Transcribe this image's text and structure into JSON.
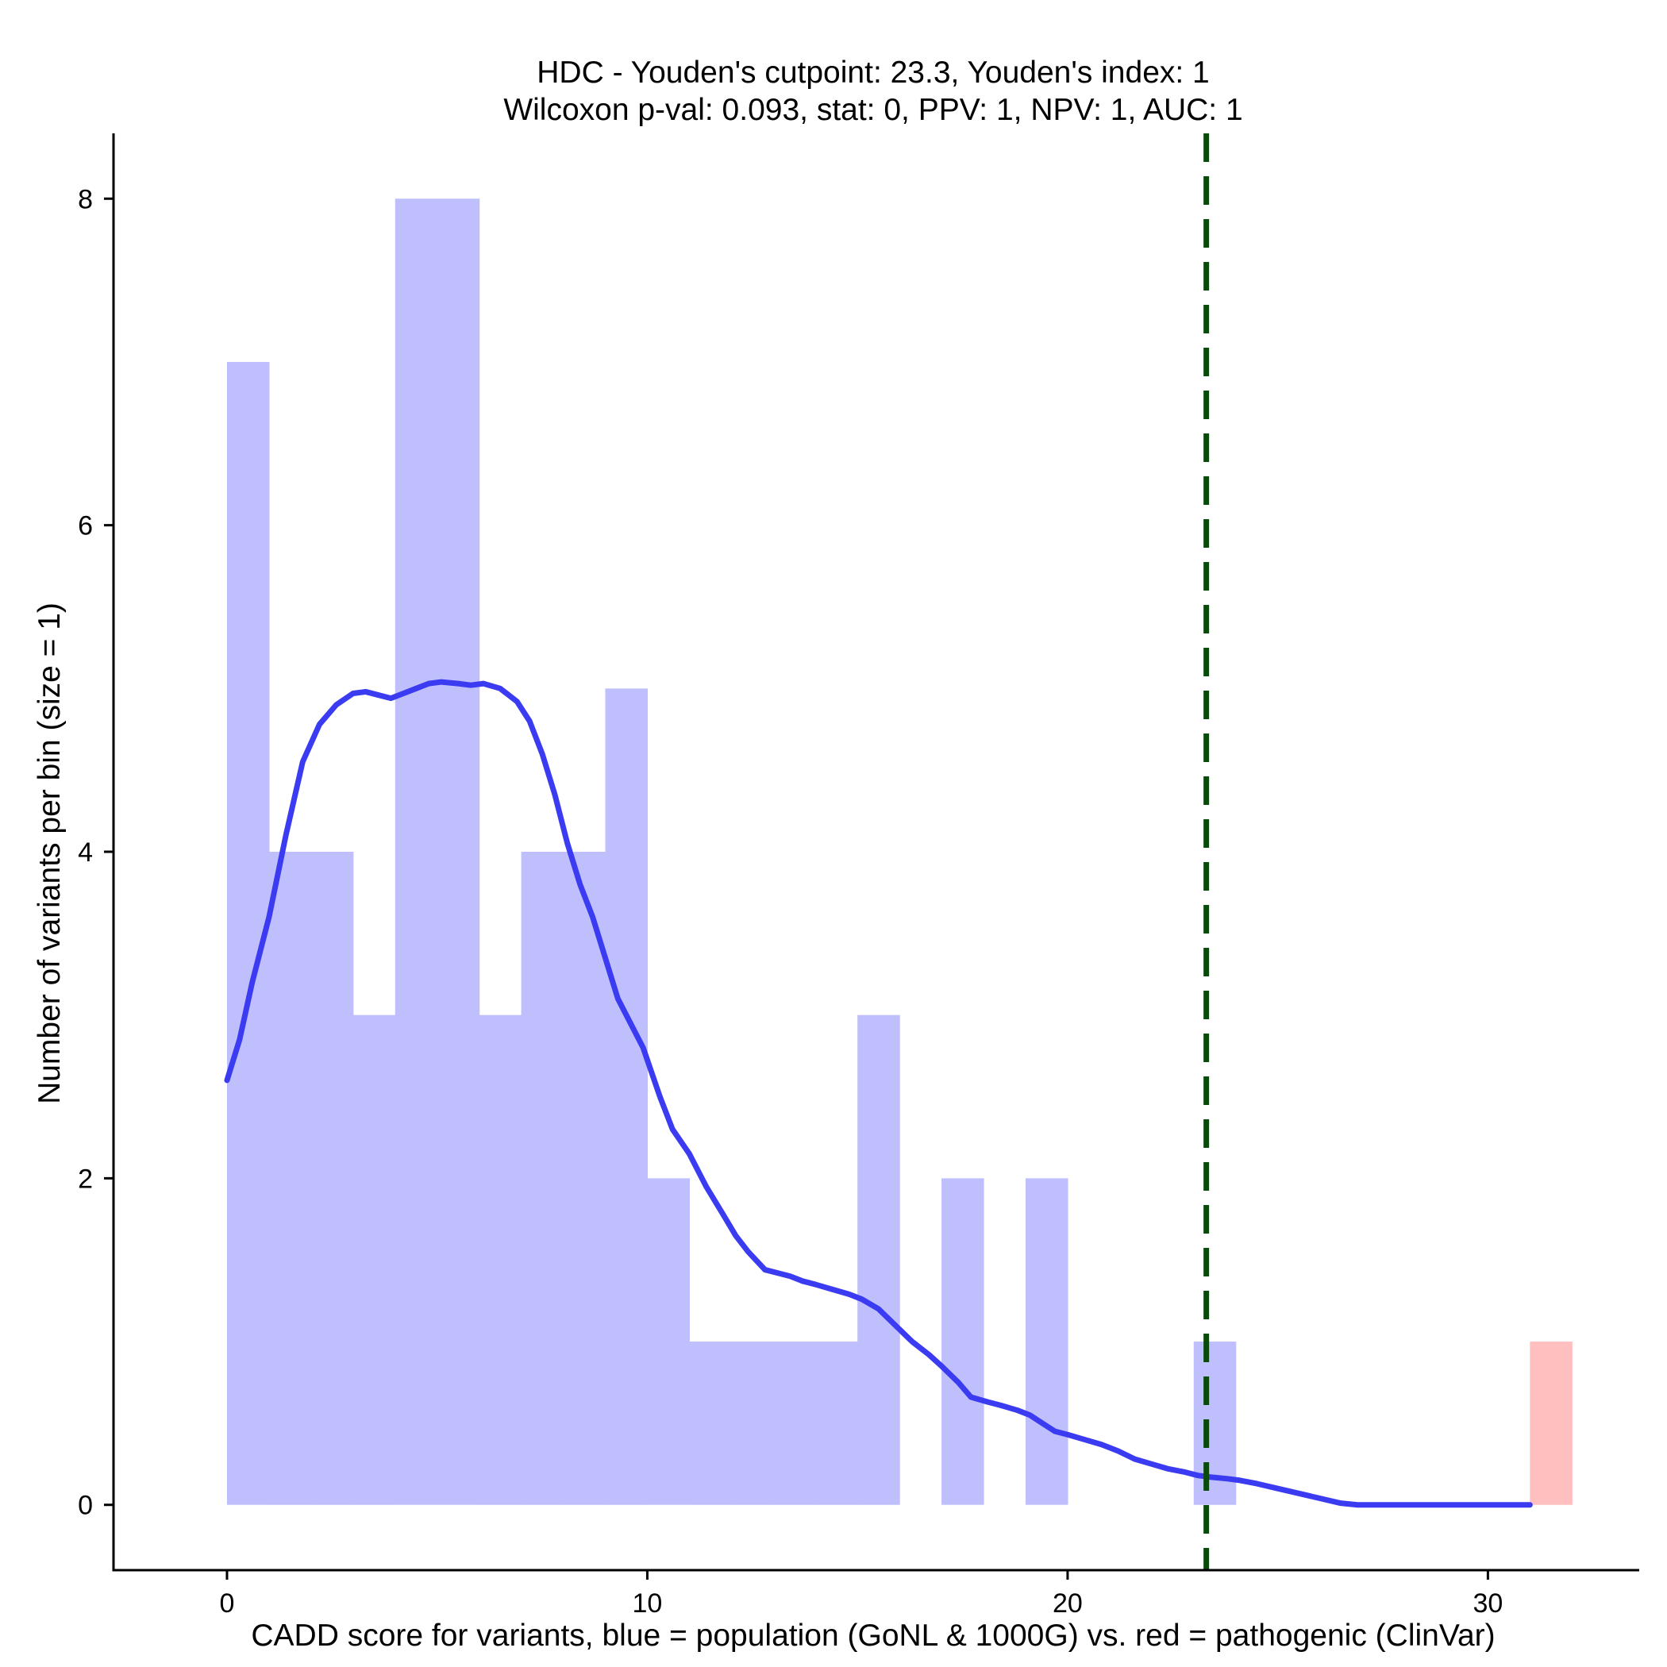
{
  "chart_data": {
    "type": "bar",
    "title": "HDC - Youden's cutpoint: 23.3, Youden's index: 1",
    "subtitle": "Wilcoxon p-val: 0.093, stat: 0, PPV: 1, NPV: 1, AUC: 1",
    "xlabel": "CADD score for variants, blue = population (GoNL & 1000G) vs. red = pathogenic (ClinVar)",
    "ylabel": "Number of variants per bin (size = 1)",
    "xlim": [
      -2.7,
      33.6
    ],
    "ylim": [
      -0.4,
      8.4
    ],
    "x_ticks": [
      0,
      10,
      20,
      30
    ],
    "y_ticks": [
      0,
      2,
      4,
      6,
      8
    ],
    "bin_width": 1,
    "cutpoint": 23.3,
    "colors": {
      "population": "#bfbffd",
      "pathogenic": "#ffbfbf",
      "density": "#3b3bf2",
      "cutpoint": "#0a4a0a"
    },
    "series": [
      {
        "name": "population",
        "bins": [
          {
            "start": 0,
            "count": 7
          },
          {
            "start": 1,
            "count": 4
          },
          {
            "start": 2,
            "count": 4
          },
          {
            "start": 3,
            "count": 3
          },
          {
            "start": 4,
            "count": 8
          },
          {
            "start": 5,
            "count": 8
          },
          {
            "start": 6,
            "count": 3
          },
          {
            "start": 7,
            "count": 4
          },
          {
            "start": 8,
            "count": 4
          },
          {
            "start": 9,
            "count": 5
          },
          {
            "start": 10,
            "count": 2
          },
          {
            "start": 11,
            "count": 1
          },
          {
            "start": 12,
            "count": 1
          },
          {
            "start": 13,
            "count": 1
          },
          {
            "start": 14,
            "count": 1
          },
          {
            "start": 15,
            "count": 3
          },
          {
            "start": 17,
            "count": 2
          },
          {
            "start": 19,
            "count": 2
          },
          {
            "start": 23,
            "count": 1
          }
        ]
      },
      {
        "name": "pathogenic",
        "bins": [
          {
            "start": 31,
            "count": 1
          }
        ]
      }
    ],
    "density_curve": {
      "x": [
        0,
        0.3,
        0.6,
        1,
        1.4,
        1.8,
        2.2,
        2.6,
        3,
        3.3,
        3.6,
        3.9,
        4.2,
        4.5,
        4.8,
        5.1,
        5.5,
        5.8,
        6.1,
        6.5,
        6.9,
        7.2,
        7.5,
        7.8,
        8.1,
        8.4,
        8.7,
        9,
        9.3,
        9.6,
        9.9,
        10.3,
        10.6,
        11,
        11.4,
        11.8,
        12.1,
        12.4,
        12.8,
        13.1,
        13.4,
        13.7,
        14,
        14.4,
        14.8,
        15.1,
        15.5,
        15.9,
        16.3,
        16.7,
        17,
        17.4,
        17.7,
        18.1,
        18.4,
        18.8,
        19.1,
        19.4,
        19.7,
        20,
        20.4,
        20.8,
        21.2,
        21.6,
        22,
        22.4,
        22.8,
        23.1,
        23.4,
        23.8,
        24.1,
        24.5,
        25,
        25.5,
        26,
        26.5,
        26.9,
        27.3,
        28,
        29,
        30,
        30.6,
        31
      ],
      "y": [
        2.6,
        2.85,
        3.2,
        3.6,
        4.1,
        4.55,
        4.78,
        4.9,
        4.97,
        4.98,
        4.96,
        4.94,
        4.97,
        5.0,
        5.03,
        5.04,
        5.03,
        5.02,
        5.03,
        5.0,
        4.92,
        4.8,
        4.6,
        4.35,
        4.05,
        3.8,
        3.6,
        3.35,
        3.1,
        2.95,
        2.8,
        2.5,
        2.3,
        2.15,
        1.95,
        1.78,
        1.65,
        1.55,
        1.44,
        1.42,
        1.4,
        1.37,
        1.35,
        1.32,
        1.29,
        1.26,
        1.2,
        1.1,
        1.0,
        0.92,
        0.85,
        0.75,
        0.66,
        0.63,
        0.61,
        0.58,
        0.55,
        0.5,
        0.45,
        0.43,
        0.4,
        0.37,
        0.33,
        0.28,
        0.25,
        0.22,
        0.2,
        0.18,
        0.17,
        0.16,
        0.15,
        0.13,
        0.1,
        0.07,
        0.04,
        0.01,
        0.0,
        0.0,
        0.0,
        0.0,
        0.0,
        0.0,
        0.0
      ]
    }
  }
}
